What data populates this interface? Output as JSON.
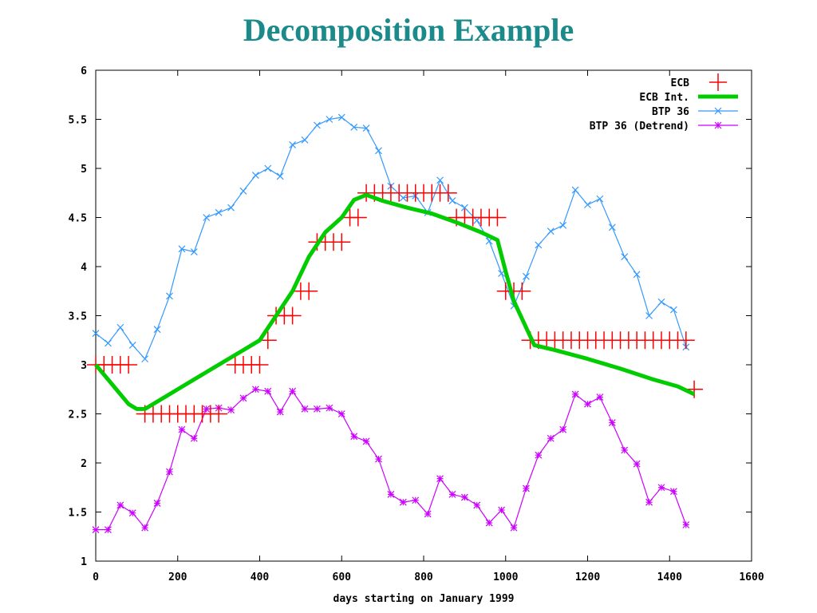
{
  "page": {
    "title": "Decomposition Example"
  },
  "chart_data": {
    "type": "line",
    "title": "",
    "xlabel": "days starting on January 1999",
    "ylabel": "",
    "xlim": [
      0,
      1600
    ],
    "ylim": [
      1,
      6
    ],
    "xticks": [
      0,
      200,
      400,
      600,
      800,
      1000,
      1200,
      1400,
      1600
    ],
    "xtick_labels": [
      "0",
      "200",
      "400",
      "600",
      "800",
      "1000",
      "1200",
      "1400",
      "1600"
    ],
    "yticks": [
      1,
      1.5,
      2,
      2.5,
      3,
      3.5,
      4,
      4.5,
      5,
      5.5,
      6
    ],
    "ytick_labels": [
      "1",
      "1.5",
      "2",
      "2.5",
      "3",
      "3.5",
      "4",
      "4.5",
      "5",
      "5.5",
      "6"
    ],
    "grid": false,
    "legend_position": "top-right",
    "series": [
      {
        "name": "ECB",
        "style": "plus-markers",
        "color": "#ff0000",
        "x": [
          0,
          20,
          40,
          60,
          80,
          120,
          140,
          160,
          180,
          200,
          220,
          240,
          260,
          280,
          300,
          340,
          360,
          380,
          400,
          420,
          440,
          460,
          480,
          500,
          520,
          540,
          560,
          580,
          600,
          620,
          640,
          660,
          680,
          700,
          720,
          740,
          760,
          780,
          800,
          820,
          840,
          860,
          880,
          900,
          920,
          940,
          960,
          980,
          1000,
          1020,
          1040,
          1060,
          1080,
          1100,
          1120,
          1140,
          1160,
          1180,
          1200,
          1220,
          1240,
          1260,
          1280,
          1300,
          1320,
          1340,
          1360,
          1380,
          1400,
          1420,
          1440,
          1460
        ],
        "y": [
          3,
          3,
          3,
          3,
          3,
          2.5,
          2.5,
          2.5,
          2.5,
          2.5,
          2.5,
          2.5,
          2.5,
          2.5,
          2.5,
          3,
          3,
          3,
          3,
          3.25,
          3.5,
          3.5,
          3.5,
          3.75,
          3.75,
          4.25,
          4.25,
          4.25,
          4.25,
          4.5,
          4.5,
          4.75,
          4.75,
          4.75,
          4.75,
          4.75,
          4.75,
          4.75,
          4.75,
          4.75,
          4.75,
          4.75,
          4.5,
          4.5,
          4.5,
          4.5,
          4.5,
          4.5,
          3.75,
          3.75,
          3.75,
          3.25,
          3.25,
          3.25,
          3.25,
          3.25,
          3.25,
          3.25,
          3.25,
          3.25,
          3.25,
          3.25,
          3.25,
          3.25,
          3.25,
          3.25,
          3.25,
          3.25,
          3.25,
          3.25,
          3.25,
          2.75
        ]
      },
      {
        "name": "ECB Int.",
        "style": "thick-line",
        "color": "#00cc00",
        "x": [
          0,
          40,
          80,
          100,
          120,
          180,
          240,
          300,
          360,
          400,
          440,
          480,
          520,
          560,
          600,
          630,
          660,
          700,
          760,
          820,
          880,
          940,
          980,
          1000,
          1020,
          1050,
          1070,
          1120,
          1200,
          1280,
          1360,
          1420,
          1460
        ],
        "y": [
          3,
          2.8,
          2.6,
          2.55,
          2.55,
          2.7,
          2.85,
          3,
          3.15,
          3.25,
          3.5,
          3.75,
          4.1,
          4.35,
          4.5,
          4.68,
          4.73,
          4.67,
          4.6,
          4.54,
          4.45,
          4.35,
          4.27,
          3.95,
          3.65,
          3.38,
          3.2,
          3.15,
          3.06,
          2.96,
          2.85,
          2.78,
          2.7
        ]
      },
      {
        "name": "BTP 36",
        "style": "line-x-markers",
        "color": "#3399ff",
        "x": [
          0,
          30,
          60,
          90,
          120,
          150,
          180,
          210,
          240,
          270,
          300,
          330,
          360,
          390,
          420,
          450,
          480,
          510,
          540,
          570,
          600,
          630,
          660,
          690,
          720,
          750,
          780,
          810,
          840,
          870,
          900,
          930,
          960,
          990,
          1020,
          1050,
          1080,
          1110,
          1140,
          1170,
          1200,
          1230,
          1260,
          1290,
          1320,
          1350,
          1380,
          1410,
          1440
        ],
        "y": [
          3.32,
          3.22,
          3.38,
          3.2,
          3.06,
          3.36,
          3.7,
          4.18,
          4.15,
          4.5,
          4.55,
          4.6,
          4.77,
          4.93,
          5,
          4.92,
          5.24,
          5.29,
          5.44,
          5.5,
          5.52,
          5.42,
          5.41,
          5.18,
          4.82,
          4.7,
          4.72,
          4.55,
          4.88,
          4.67,
          4.6,
          4.47,
          4.26,
          3.93,
          3.6,
          3.9,
          4.22,
          4.36,
          4.42,
          4.78,
          4.63,
          4.69,
          4.4,
          4.1,
          3.92,
          3.5,
          3.64,
          3.56,
          3.18
        ]
      },
      {
        "name": "BTP 36 (Detrend)",
        "style": "line-star-markers",
        "color": "#cc00ff",
        "x": [
          0,
          30,
          60,
          90,
          120,
          150,
          180,
          210,
          240,
          270,
          300,
          330,
          360,
          390,
          420,
          450,
          480,
          510,
          540,
          570,
          600,
          630,
          660,
          690,
          720,
          750,
          780,
          810,
          840,
          870,
          900,
          930,
          960,
          990,
          1020,
          1050,
          1080,
          1110,
          1140,
          1170,
          1200,
          1230,
          1260,
          1290,
          1320,
          1350,
          1380,
          1410,
          1440
        ],
        "y": [
          1.32,
          1.32,
          1.57,
          1.49,
          1.34,
          1.59,
          1.91,
          2.34,
          2.25,
          2.55,
          2.56,
          2.54,
          2.66,
          2.75,
          2.73,
          2.52,
          2.73,
          2.55,
          2.55,
          2.56,
          2.5,
          2.27,
          2.22,
          2.04,
          1.68,
          1.6,
          1.62,
          1.48,
          1.84,
          1.68,
          1.65,
          1.57,
          1.39,
          1.52,
          1.34,
          1.74,
          2.08,
          2.25,
          2.34,
          2.7,
          2.6,
          2.67,
          2.41,
          2.13,
          1.99,
          1.6,
          1.75,
          1.71,
          1.37
        ]
      }
    ]
  }
}
